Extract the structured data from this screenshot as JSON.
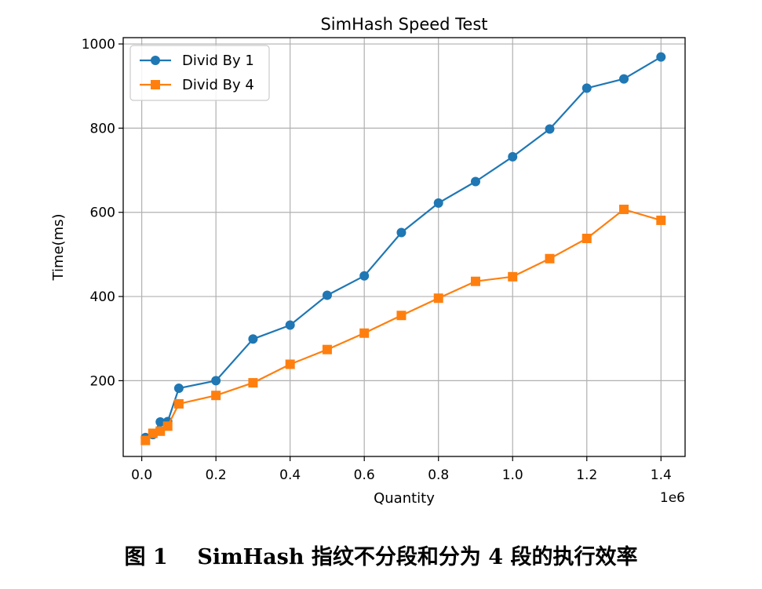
{
  "chart_data": {
    "type": "line",
    "title": "SimHash Speed Test",
    "xlabel": "Quantity",
    "ylabel": "Time(ms)",
    "x_offset_label": "1e6",
    "xlim": [
      -0.05,
      1.465
    ],
    "ylim": [
      20,
      1015
    ],
    "x_ticks": [
      0.0,
      0.2,
      0.4,
      0.6,
      0.8,
      1.0,
      1.2,
      1.4
    ],
    "x_tick_labels": [
      "0.0",
      "0.2",
      "0.4",
      "0.6",
      "0.8",
      "1.0",
      "1.2",
      "1.4"
    ],
    "y_ticks": [
      200,
      400,
      600,
      800,
      1000
    ],
    "y_tick_labels": [
      "200",
      "400",
      "600",
      "800",
      "1000"
    ],
    "grid": true,
    "legend_position": "upper-left",
    "series": [
      {
        "name": "Divid By 1",
        "color": "#1f77b4",
        "marker": "circle",
        "x": [
          0.01,
          0.03,
          0.05,
          0.07,
          0.1,
          0.2,
          0.3,
          0.4,
          0.5,
          0.6,
          0.7,
          0.8,
          0.9,
          1.0,
          1.1,
          1.2,
          1.3,
          1.4
        ],
        "y": [
          65,
          72,
          102,
          103,
          182,
          200,
          299,
          332,
          403,
          449,
          552,
          622,
          673,
          732,
          798,
          895,
          917,
          969
        ]
      },
      {
        "name": "Divid By 4",
        "color": "#ff7f0e",
        "marker": "square",
        "x": [
          0.01,
          0.03,
          0.05,
          0.07,
          0.1,
          0.2,
          0.3,
          0.4,
          0.5,
          0.6,
          0.7,
          0.8,
          0.9,
          1.0,
          1.1,
          1.2,
          1.3,
          1.4
        ],
        "y": [
          58,
          75,
          80,
          92,
          145,
          165,
          195,
          239,
          274,
          313,
          355,
          396,
          436,
          447,
          490,
          538,
          607,
          581
        ]
      }
    ]
  },
  "caption": "图 1    SimHash 指纹不分段和分为 4 段的执行效率"
}
